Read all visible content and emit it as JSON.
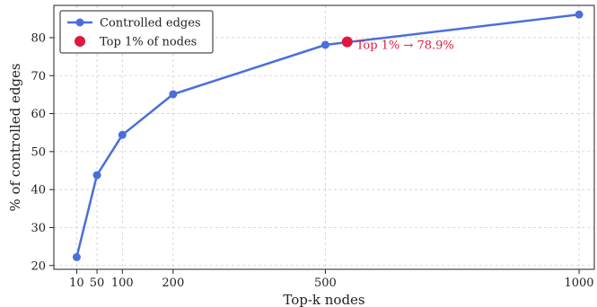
{
  "chart_data": {
    "type": "line",
    "title": "",
    "xlabel": "Top-k nodes",
    "ylabel": "% of controlled edges",
    "xlim": [
      -35,
      1030
    ],
    "ylim": [
      19,
      88.5
    ],
    "grid": true,
    "legend_position": "top-left",
    "xticks": [
      10,
      50,
      100,
      200,
      500,
      1000
    ],
    "yticks": [
      20,
      30,
      40,
      50,
      60,
      70,
      80
    ],
    "colors": {
      "line": "#4a6fdc",
      "highlight": "#e0193f",
      "annotation": "#e0193f",
      "grid": "#cfcfcf"
    },
    "series": [
      {
        "name": "Controlled edges",
        "x": [
          10,
          50,
          100,
          200,
          500,
          1000
        ],
        "y": [
          22.2,
          43.8,
          54.4,
          65.1,
          78.1,
          86.1
        ]
      }
    ],
    "highlight": {
      "name": "Top 1% of nodes",
      "x": 543,
      "y": 78.9,
      "label": "Top 1% → 78.9%"
    }
  }
}
